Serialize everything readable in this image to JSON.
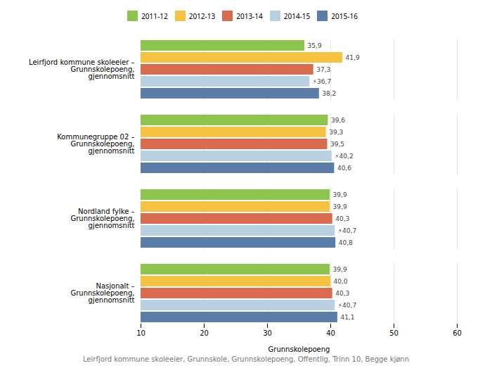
{
  "chart_data": {
    "type": "bar",
    "orientation": "horizontal",
    "xlabel": "Grunnskolepoeng",
    "caption": "Leirfjord kommune skoleeier, Grunnskole, Grunnskolepoeng, Offentlig, Trinn 10, Begge kjønn",
    "categories": [
      "Leirfjord kommune skoleeier –\nGrunnskolepoeng,\ngjennomsnitt",
      "Kommunegruppe 02 –\nGrunnskolepoeng,\ngjennomsnitt",
      "Nordland fylke –\nGrunnskolepoeng,\ngjennomsnitt",
      "Nasjonalt –\nGrunnskolepoeng,\ngjennomsnitt"
    ],
    "series": [
      {
        "name": "2011-12",
        "color": "#8dc44e",
        "values": [
          35.9,
          39.6,
          39.9,
          39.9
        ],
        "value_labels": [
          "35,9",
          "39,6",
          "39,9",
          "39,9"
        ]
      },
      {
        "name": "2012-13",
        "color": "#f5c242",
        "values": [
          41.9,
          39.3,
          39.9,
          40.0
        ],
        "value_labels": [
          "41,9",
          "39,3",
          "39,9",
          "40,0"
        ]
      },
      {
        "name": "2013-14",
        "color": "#d96b4e",
        "values": [
          37.3,
          39.5,
          40.3,
          40.3
        ],
        "value_labels": [
          "37,3",
          "39,5",
          "40,3",
          "40,3"
        ]
      },
      {
        "name": "2014-15",
        "color": "#b8d0e0",
        "values": [
          36.7,
          40.2,
          40.7,
          40.7
        ],
        "value_labels": [
          "⚡36,7",
          "⚡40,2",
          "⚡40,7",
          "⚡40,7"
        ]
      },
      {
        "name": "2015-16",
        "color": "#5a7ea8",
        "values": [
          38.2,
          40.6,
          40.8,
          41.1
        ],
        "value_labels": [
          "38,2",
          "40,6",
          "40,8",
          "41,1"
        ]
      }
    ],
    "xlim": [
      10,
      60
    ],
    "xticks": [
      10,
      20,
      30,
      40,
      50,
      60
    ],
    "grid": true,
    "legend": "top",
    "data_labels": true
  }
}
